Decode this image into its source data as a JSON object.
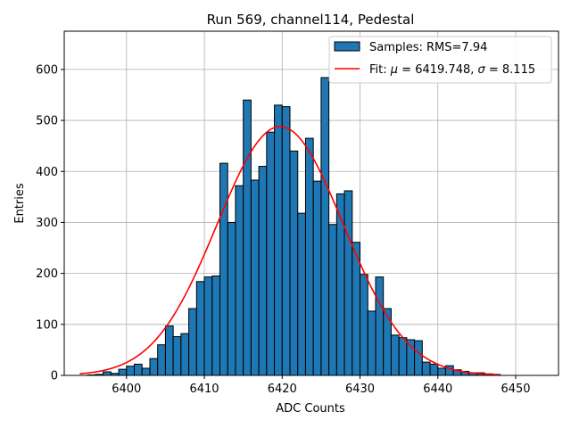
{
  "chart_data": {
    "type": "bar",
    "subtype": "histogram",
    "title": "Run 569, channel114, Pedestal",
    "xlabel": "ADC Counts",
    "ylabel": "Entries",
    "xlim": [
      6392.0,
      6455.5
    ],
    "ylim": [
      0,
      675
    ],
    "xticks": [
      6400,
      6410,
      6420,
      6430,
      6440,
      6450
    ],
    "yticks": [
      0,
      100,
      200,
      300,
      400,
      500,
      600
    ],
    "grid": true,
    "legend_position": "top-right",
    "bin_width": 1,
    "series": [
      {
        "name": "Samples: RMS=7.94",
        "kind": "histogram",
        "color": "#1f77b4",
        "edge_color": "#000000",
        "bin_starts": [
          6395,
          6396,
          6397,
          6398,
          6399,
          6400,
          6401,
          6402,
          6403,
          6404,
          6405,
          6406,
          6407,
          6408,
          6409,
          6410,
          6411,
          6412,
          6413,
          6414,
          6415,
          6416,
          6417,
          6418,
          6419,
          6420,
          6421,
          6422,
          6423,
          6424,
          6425,
          6426,
          6427,
          6428,
          6429,
          6430,
          6431,
          6432,
          6433,
          6434,
          6435,
          6436,
          6437,
          6438,
          6439,
          6440,
          6441,
          6442,
          6443,
          6444,
          6445,
          6446,
          6447
        ],
        "values": [
          1,
          2,
          7,
          4,
          12,
          18,
          22,
          14,
          33,
          60,
          97,
          76,
          82,
          131,
          184,
          193,
          195,
          416,
          300,
          372,
          540,
          383,
          410,
          477,
          530,
          527,
          440,
          318,
          465,
          381,
          584,
          296,
          356,
          362,
          261,
          198,
          126,
          193,
          131,
          79,
          74,
          70,
          68,
          26,
          22,
          14,
          19,
          11,
          8,
          5,
          5,
          3,
          2
        ]
      },
      {
        "name": "Fit: μ = 6419.748, σ = 8.115",
        "kind": "gaussian-fit",
        "color": "#ff0000",
        "mu": 6419.748,
        "sigma": 8.115,
        "amplitude": 488,
        "x_range": [
          6394,
          6448
        ]
      }
    ],
    "legend": [
      {
        "label": "Samples: RMS=7.94"
      },
      {
        "label_prefix": "Fit: ",
        "mu_symbol": "μ",
        "mu_text": " = 6419.748, ",
        "sigma_symbol": "σ",
        "sigma_text": " = 8.115"
      }
    ]
  }
}
